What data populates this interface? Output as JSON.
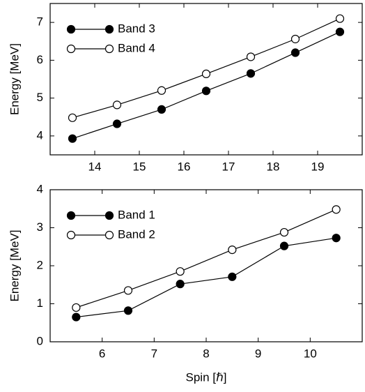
{
  "chart_data": [
    {
      "type": "line",
      "ylabel": "Energy [MeV]",
      "x": [
        13.5,
        14.5,
        15.5,
        16.5,
        17.5,
        18.5,
        19.5
      ],
      "series": [
        {
          "name": "Band 3",
          "color": "#000000",
          "marker": "filled",
          "values": [
            3.93,
            4.32,
            4.7,
            5.19,
            5.65,
            6.2,
            6.75
          ]
        },
        {
          "name": "Band 4",
          "color": "#000000",
          "marker": "open",
          "values": [
            4.48,
            4.82,
            5.2,
            5.64,
            6.09,
            6.56,
            7.1
          ]
        }
      ],
      "xlim": [
        13,
        20
      ],
      "xticks": [
        14,
        15,
        16,
        17,
        18,
        19
      ],
      "ylim": [
        3.5,
        7.5
      ],
      "yticks": [
        4,
        5,
        6,
        7
      ],
      "legend": "upper left"
    },
    {
      "type": "line",
      "xlabel": "Spin [ℏ]",
      "ylabel": "Energy [MeV]",
      "x": [
        5.5,
        6.5,
        7.5,
        8.5,
        9.5,
        10.5
      ],
      "series": [
        {
          "name": "Band 1",
          "color": "#000000",
          "marker": "filled",
          "values": [
            0.65,
            0.82,
            1.52,
            1.71,
            2.52,
            2.73
          ]
        },
        {
          "name": "Band 2",
          "color": "#000000",
          "marker": "open",
          "values": [
            0.9,
            1.35,
            1.85,
            2.42,
            2.88,
            3.48
          ]
        }
      ],
      "xlim": [
        5,
        11
      ],
      "xticks": [
        6,
        7,
        8,
        9,
        10
      ],
      "ylim": [
        0,
        4
      ],
      "yticks": [
        0,
        1,
        2,
        3,
        4
      ],
      "legend": "upper left"
    }
  ]
}
